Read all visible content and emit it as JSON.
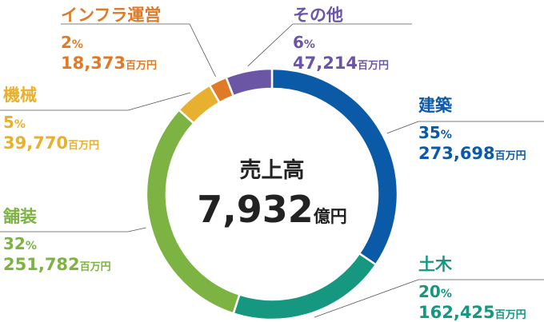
{
  "chart_data": {
    "type": "pie",
    "center_label": "売上高",
    "total_value": "7,932",
    "total_unit": "億円",
    "slices": [
      {
        "name": "建築",
        "percent": 35,
        "amount": "273,698",
        "value": 273698,
        "unit": "百万円",
        "color": "#0a5aa8"
      },
      {
        "name": "土木",
        "percent": 20,
        "amount": "162,425",
        "value": 162425,
        "unit": "百万円",
        "color": "#16977f"
      },
      {
        "name": "舗装",
        "percent": 32,
        "amount": "251,782",
        "value": 251782,
        "unit": "百万円",
        "color": "#7cb342"
      },
      {
        "name": "機械",
        "percent": 5,
        "amount": "39,770",
        "value": 39770,
        "unit": "百万円",
        "color": "#e8b02f"
      },
      {
        "name": "インフラ運営",
        "percent": 2,
        "amount": "18,373",
        "value": 18373,
        "unit": "百万円",
        "color": "#e07a26"
      },
      {
        "name": "その他",
        "percent": 6,
        "amount": "47,214",
        "value": 47214,
        "unit": "百万円",
        "color": "#6b56a6"
      }
    ],
    "percent_suffix": "%"
  }
}
